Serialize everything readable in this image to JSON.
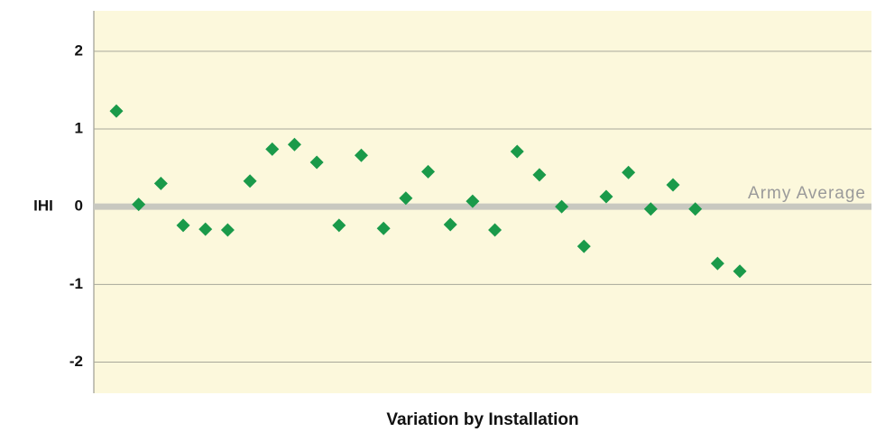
{
  "chart_data": {
    "type": "scatter",
    "y_label": "IHI",
    "x_label": "Variation by Installation",
    "categories": [
      null,
      null,
      null,
      null,
      null,
      null,
      null,
      null,
      null,
      null,
      null,
      null,
      null,
      null,
      null,
      null,
      null,
      null,
      null,
      null,
      null,
      null,
      null,
      null,
      null,
      null,
      null,
      null,
      null
    ],
    "values": [
      1.23,
      0.03,
      0.3,
      -0.24,
      -0.29,
      -0.3,
      0.33,
      0.74,
      0.8,
      0.57,
      -0.24,
      0.66,
      -0.28,
      0.11,
      0.45,
      -0.23,
      0.07,
      -0.3,
      0.71,
      0.41,
      0.0,
      -0.51,
      0.13,
      0.44,
      -0.03,
      0.28,
      -0.03,
      -0.73,
      -0.83
    ],
    "color": "#1a9a4a",
    "ylim": [
      -2.4,
      2.52
    ],
    "yticks": [
      -2,
      -1,
      0,
      1,
      2
    ],
    "grid": true,
    "reference_line": {
      "value": 0,
      "label": "Army Average"
    }
  }
}
